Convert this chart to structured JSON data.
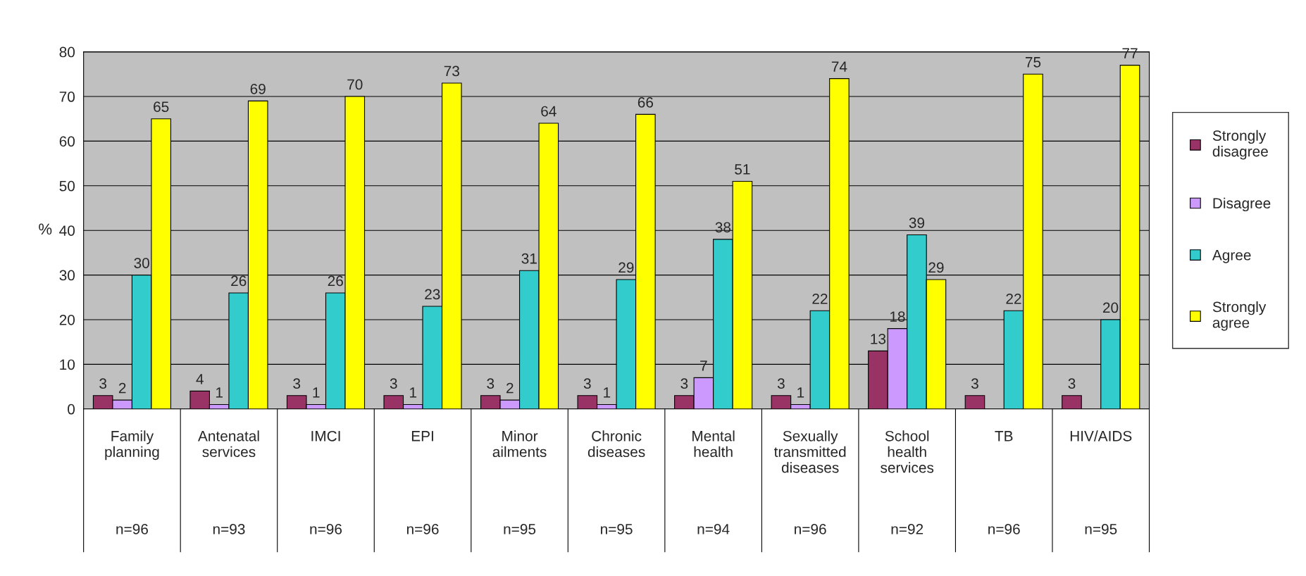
{
  "chart_data": {
    "type": "bar",
    "ylabel": "%",
    "categories": [
      "Family planning",
      "Antenatal services",
      "IMCI",
      "EPI",
      "Minor ailments",
      "Chronic diseases",
      "Mental health",
      "Sexually transmitted diseases",
      "School health services",
      "TB",
      "HIV/AIDS"
    ],
    "series": [
      {
        "name": "Strongly disagree",
        "color": "#993366",
        "values": [
          3,
          4,
          3,
          3,
          3,
          3,
          3,
          3,
          13,
          3,
          3
        ]
      },
      {
        "name": "Disagree",
        "color": "#cc99ff",
        "values": [
          2,
          1,
          1,
          1,
          2,
          1,
          7,
          1,
          18,
          null,
          null
        ]
      },
      {
        "name": "Agree",
        "color": "#33cccc",
        "values": [
          30,
          26,
          26,
          23,
          31,
          29,
          38,
          22,
          39,
          22,
          20
        ]
      },
      {
        "name": "Strongly agree",
        "color": "#ffff00",
        "values": [
          65,
          69,
          70,
          73,
          64,
          66,
          51,
          74,
          29,
          75,
          77
        ]
      }
    ],
    "annotations": [
      "n=96",
      "n=93",
      "n=96",
      "n=96",
      "n=95",
      "n=95",
      "n=94",
      "n=96",
      "n=92",
      "n=96",
      "n=95"
    ],
    "ylim": [
      0,
      80
    ],
    "yticks": [
      0,
      10,
      20,
      30,
      40,
      50,
      60,
      70,
      80
    ],
    "grid": "y",
    "legend": "right",
    "data_labels": true
  }
}
